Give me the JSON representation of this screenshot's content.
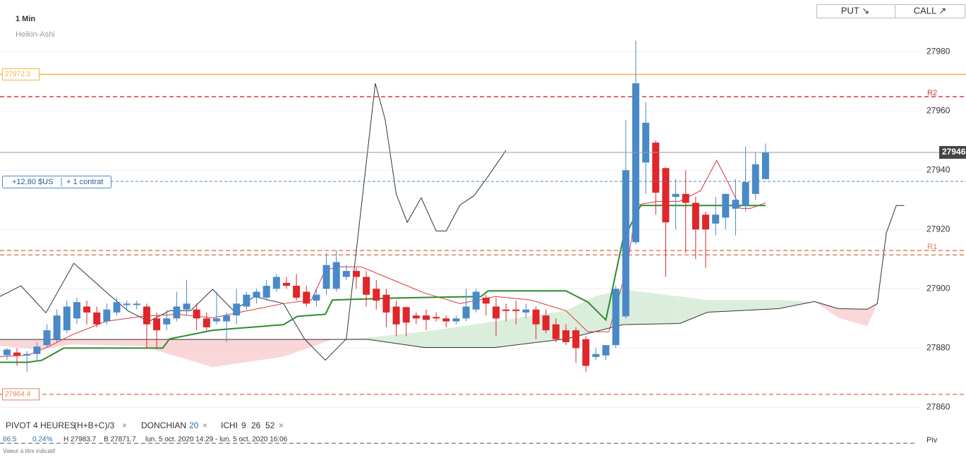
{
  "header": {
    "interval": "1 Min",
    "style": "Heikin-Ashi"
  },
  "trade_buttons": [
    "PUT ↘",
    "CALL ↗"
  ],
  "position": {
    "pnl": "+12,80 $US",
    "size": "+ 1 contrat"
  },
  "indicators": [
    {
      "name": "PIVOT",
      "params": [
        "4 HEURES",
        "(H+B+C)/3"
      ]
    },
    {
      "name": "DONCHIAN",
      "params": [
        "20"
      ]
    },
    {
      "name": "ICHI",
      "params": [
        "9",
        "26",
        "52"
      ]
    }
  ],
  "close_label": "×",
  "footer": {
    "change": "66.5",
    "change_pct": "0.24%",
    "high": "H 27983.7",
    "low": "B 27871.7",
    "range": "lun. 5 oct. 2020 14:29 - lun. 5 oct. 2020 16:06",
    "note": "Valeur à titre indicatif"
  },
  "chart_data": {
    "type": "candlestick",
    "up_color": "#4a89c8",
    "down_color": "#e0262a",
    "xlim": [
      -0.7,
      90.5
    ],
    "ylim": [
      27857,
      27997.4
    ],
    "yticks": [
      27860,
      27880,
      27900,
      27920,
      27940,
      27960,
      27980
    ],
    "grid": true,
    "open": [
      27877.6,
      27878.5,
      27877.5,
      27878,
      27881,
      27883,
      27886,
      27890,
      27894,
      27892,
      27889,
      27892,
      27894.5,
      27894.5,
      27894,
      27890,
      27888,
      27890,
      27893,
      27893,
      27890,
      27889,
      27889,
      27891,
      27894,
      27897,
      27897,
      27900,
      27902,
      27901,
      27899,
      27896,
      27900,
      27900,
      27904,
      27906,
      27904,
      27900,
      27898,
      27894,
      27893.8,
      27891,
      27891,
      27890.5,
      27890,
      27889,
      27890,
      27893,
      27897,
      27894,
      27893,
      27893,
      27892,
      27893,
      27891,
      27888,
      27886,
      27886,
      27883,
      27877,
      27877.5,
      27881,
      27890.7,
      27915.7,
      27942.6,
      27949.3,
      27940.7,
      27931,
      27932,
      27929,
      27925,
      27922,
      27924,
      27927,
      27928,
      27932,
      27937
    ],
    "high": [
      27880,
      27880,
      27879,
      27882,
      27888,
      27893,
      27896,
      27897,
      27896,
      27894,
      27895,
      27897,
      27896,
      27896,
      27895,
      27892,
      27893,
      27899,
      27903,
      27895,
      27892,
      27899,
      27892,
      27900,
      27899,
      27900,
      27903,
      27905,
      27904,
      27905,
      27901,
      27900,
      27912,
      27913,
      27908,
      27907,
      27906,
      27903,
      27900,
      27896,
      27894,
      27892,
      27893,
      27892,
      27891,
      27891,
      27900,
      27900,
      27898,
      27897,
      27895,
      27896,
      27895,
      27894,
      27893,
      27890,
      27888,
      27887,
      27884,
      27880,
      27881,
      27901,
      27957,
      27983.7,
      27963,
      27950,
      27941,
      27937,
      27940,
      27931,
      27926,
      27931,
      27932,
      27937,
      27948,
      27946,
      27949
    ],
    "low": [
      27876,
      27874,
      27872,
      27876,
      27880,
      27882,
      27885,
      27888,
      27888,
      27887,
      27888,
      27891,
      27893,
      27893,
      27880,
      27880,
      27886,
      27889,
      27891,
      27886,
      27886,
      27888,
      27882,
      27888,
      27893,
      27895,
      27896,
      27899,
      27900,
      27896,
      27894,
      27894,
      27898,
      27899,
      27903,
      27900,
      27894,
      27893,
      27887,
      27884,
      27884,
      27888,
      27886,
      27889,
      27887,
      27888,
      27889,
      27892,
      27891,
      27884,
      27889,
      27888,
      27890,
      27883,
      27885,
      27882,
      27881,
      27875,
      27872,
      27876,
      27876,
      27880,
      27890,
      27915,
      27932,
      27925,
      27904,
      27920,
      27912,
      27910,
      27907,
      27918,
      27920,
      27918,
      27926,
      27930,
      27937
    ],
    "close": [
      27879.5,
      27877.5,
      27878,
      27880.5,
      27886,
      27891,
      27894,
      27895.5,
      27892,
      27888,
      27893,
      27895.5,
      27895,
      27895,
      27888,
      27886,
      27890,
      27894,
      27895,
      27890,
      27887,
      27890,
      27891,
      27895,
      27898,
      27899,
      27901,
      27904,
      27901,
      27897,
      27895,
      27898,
      27908,
      27909,
      27906,
      27904,
      27898,
      27896,
      27892,
      27888,
      27888.6,
      27890,
      27889.5,
      27890,
      27889,
      27890,
      27894,
      27899,
      27895,
      27890,
      27892.5,
      27892.5,
      27893,
      27888,
      27886,
      27883,
      27882,
      27880,
      27874,
      27878,
      27881,
      27900,
      27940,
      27969.3,
      27956,
      27932.4,
      27922.4,
      27932,
      27929,
      27920,
      27920,
      27925,
      27932,
      27930,
      27936,
      27942,
      27946
    ],
    "lines": [
      {
        "color": "#333333",
        "x": [
          -0.7,
          1.4,
          3.9,
          6.7,
          9.9,
          12.1,
          14.2,
          16.3,
          18.4,
          20.6,
          22.7,
          24.8,
          27.7,
          29.8,
          31.9,
          34.0,
          36.9,
          37.9,
          39.0,
          40.1,
          41.5,
          43.0,
          44.0,
          45.4,
          46.8,
          48.2,
          50.0
        ],
        "values": [
          27897.4,
          27901.0,
          27891.9,
          27908.6,
          27899.0,
          27892.6,
          27889.0,
          27892.6,
          27892.6,
          27899.8,
          27892.6,
          27897.4,
          27895.0,
          27883.1,
          27875.9,
          27883.1,
          27969.3,
          27956.9,
          27931.9,
          27922.4,
          27930.7,
          27919.5,
          27919.5,
          27928.3,
          27931.4,
          27937.9,
          27946.7
        ]
      },
      {
        "color": "#d9363e",
        "x": [
          -0.7,
          2.1,
          4.3,
          6.4,
          9.9,
          13.5,
          17.0,
          20.6,
          24.1,
          27.7,
          30.5,
          31.9,
          33.3,
          35.5,
          39.3,
          41.8,
          45.4,
          48.9,
          52.5,
          56.0,
          58.2,
          60.3,
          62.1,
          63.1,
          65.2,
          67.4,
          69.5,
          71.1,
          72.3,
          73.5,
          74.5,
          76.0
        ],
        "values": [
          27877.1,
          27877.6,
          27880.7,
          27884.3,
          27889.0,
          27890.7,
          27891.4,
          27890.2,
          27892.6,
          27895.0,
          27896.2,
          27906.4,
          27907.4,
          27907.4,
          27902.1,
          27898.6,
          27895.0,
          27897.4,
          27896.2,
          27892.6,
          27885.5,
          27885.5,
          27906.9,
          27928.3,
          27929.5,
          27929.5,
          27933.1,
          27943.3,
          27935.5,
          27927.1,
          27927.1,
          27929.0
        ]
      },
      {
        "color": "#2e8b2e",
        "x": [
          -0.7,
          2.1,
          3.5,
          5.7,
          15.6,
          16.3,
          20.6,
          27.7,
          29.1,
          31.9,
          32.6,
          39.0,
          47.5,
          48.2,
          56.0,
          58.2,
          60.0,
          61.7,
          63.5,
          76.0
        ],
        "values": [
          27875.2,
          27875.2,
          27875.9,
          27880.0,
          27880.0,
          27883.1,
          27886.0,
          27887.9,
          27890.7,
          27891.4,
          27896.2,
          27896.9,
          27897.4,
          27899.3,
          27899.3,
          27895.5,
          27889.5,
          27916.4,
          27928.1,
          27928.1
        ]
      }
    ],
    "cloud": {
      "up_color": "#cfe8cf",
      "down_color": "#f7c9cc",
      "edge_color": "#333333",
      "x": [
        -0.7,
        3.5,
        6.4,
        13.5,
        20.6,
        27.7,
        32.6,
        36.2,
        41.8,
        48.9,
        56.0,
        58.9,
        61.7,
        67.4,
        70.2,
        77.3,
        80.9,
        83.3,
        86.2,
        87.2,
        88.1,
        89.1,
        89.9
      ],
      "span_a": [
        27880.7,
        27879.5,
        27881.2,
        27880.7,
        27873.6,
        27877.1,
        27882.9,
        27883.6,
        27885.5,
        27889.0,
        27892.6,
        27897.4,
        27899.8,
        27897.4,
        27896.2,
        27896.2,
        27895.7,
        27890.2,
        27887.4,
        27895.0,
        null,
        null,
        null
      ],
      "span_b": [
        27882.9,
        27882.9,
        27882.9,
        27882.9,
        27882.9,
        27882.9,
        27882.9,
        27882.9,
        27880.2,
        27880.2,
        27883.1,
        27885.5,
        27887.9,
        27888.3,
        27892.1,
        27893.3,
        27895.7,
        27893.3,
        27893.1,
        27895.0,
        27918.8,
        27928.1,
        27928.1
      ]
    },
    "levels": [
      {
        "value": 27972.3,
        "color": "#f5b342",
        "dashed": false,
        "tag": true
      },
      {
        "value": 27964.8,
        "name": "R2",
        "color": "#d9363e",
        "dashed": true
      },
      {
        "value": 27912.9,
        "name": "R1",
        "color": "#e0825e",
        "dashed": true
      },
      {
        "value": 27911.4,
        "color": "#e0825e",
        "dashed": true
      },
      {
        "value": 27864.4,
        "color": "#e0825e",
        "dashed": true,
        "tag": true
      }
    ],
    "current_price": 27946,
    "position_price": 27936.2,
    "pivot": {
      "name": "Piv",
      "value": 27847.9
    }
  }
}
